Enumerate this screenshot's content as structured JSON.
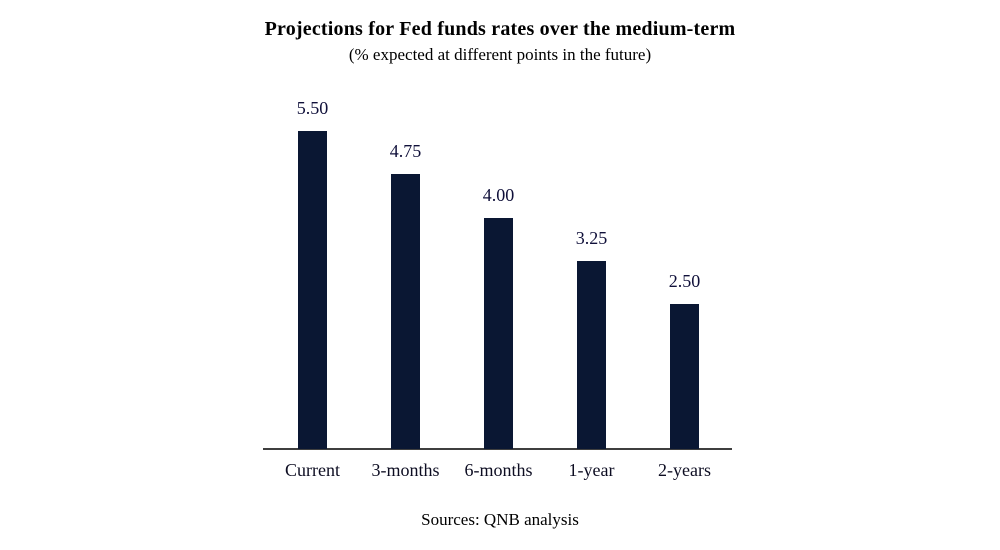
{
  "chart_data": {
    "type": "bar",
    "title": "Projections for Fed funds rates over the medium-term",
    "subtitle": "(% expected at different points in the future)",
    "source": "Sources: QNB analysis",
    "categories": [
      "Current",
      "3-months",
      "6-months",
      "1-year",
      "2-years"
    ],
    "values": [
      5.5,
      4.75,
      4.0,
      3.25,
      2.5
    ],
    "value_labels": [
      "5.50",
      "4.75",
      "4.00",
      "3.25",
      "2.50"
    ],
    "xlabel": "",
    "ylabel": "",
    "ylim": [
      0,
      5.5
    ],
    "grid": false,
    "legend": false,
    "bar_color": "#0a1733",
    "value_label_color": "#10103a",
    "category_label_color": "#0d0d22",
    "axis_color": "#3f3f3f",
    "background_color": "#ffffff"
  }
}
